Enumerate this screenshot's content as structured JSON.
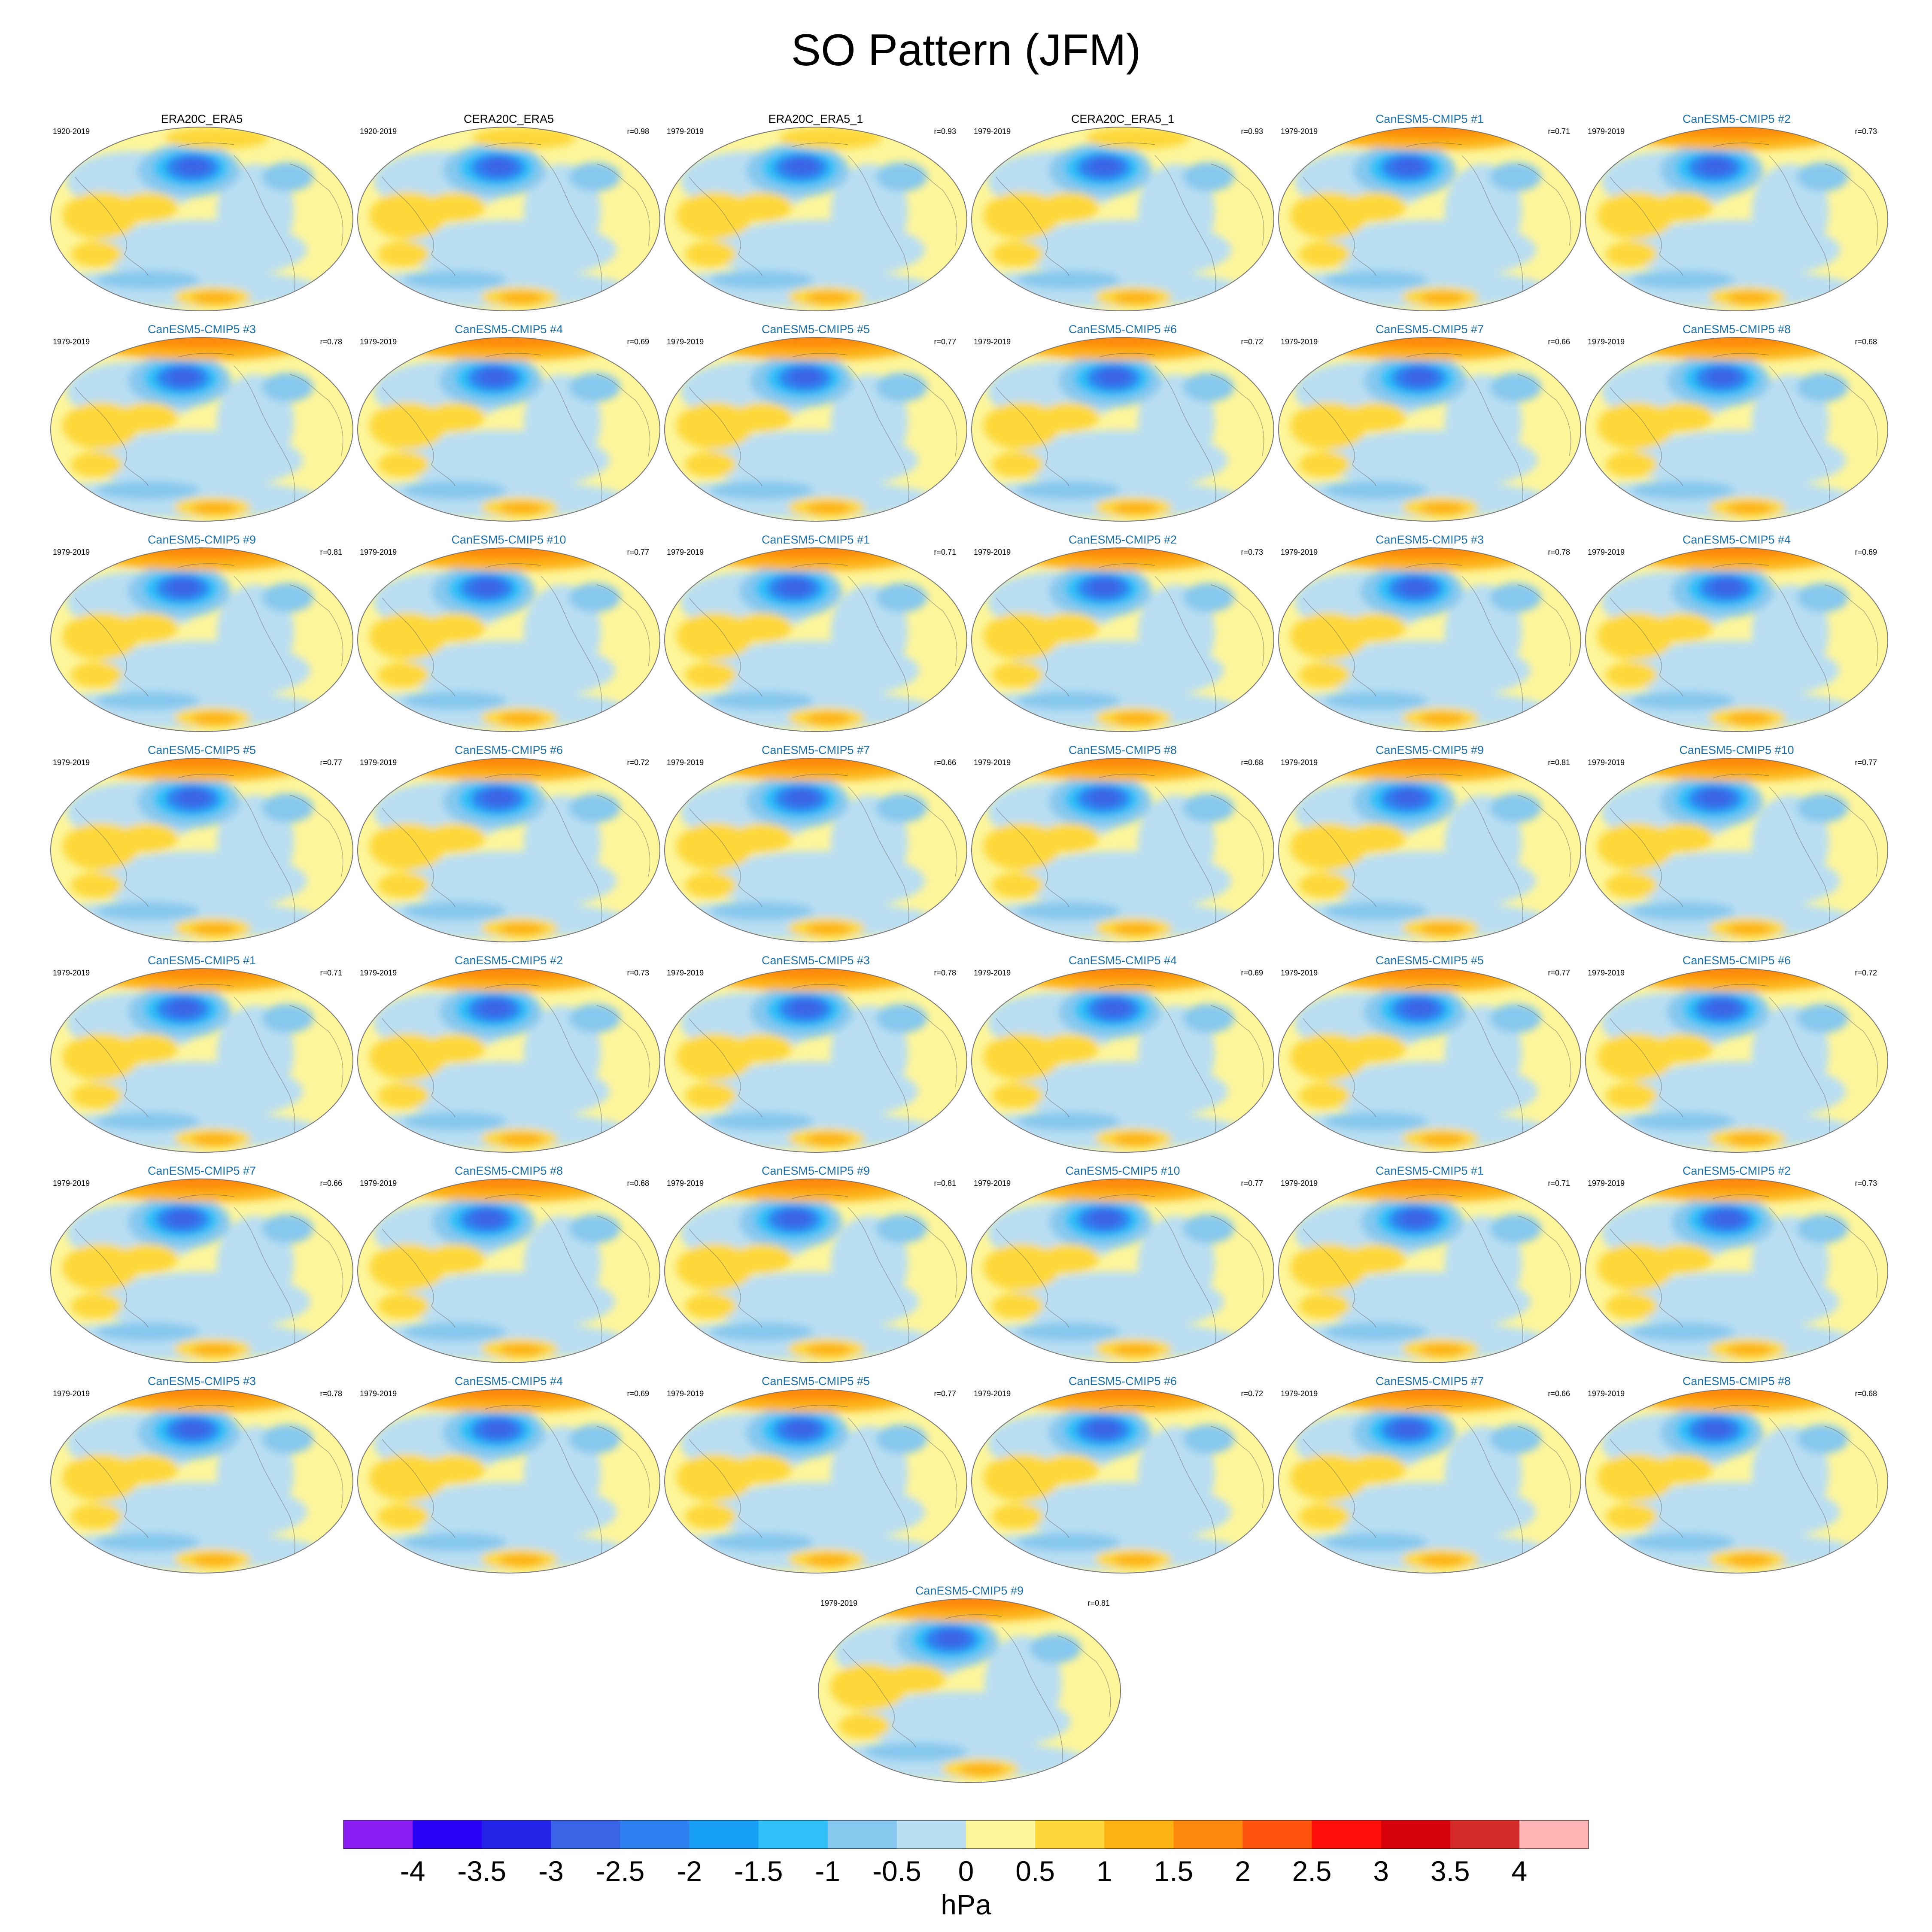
{
  "title": "SO Pattern (JFM)",
  "colorbar": {
    "unit": "hPa",
    "labels": [
      "-4",
      "-3.5",
      "-3",
      "-2.5",
      "-2",
      "-1.5",
      "-1",
      "-0.5",
      "0",
      "0.5",
      "1",
      "1.5",
      "2",
      "2.5",
      "3",
      "3.5",
      "4"
    ],
    "colors": [
      "#8a1ef2",
      "#2a00f5",
      "#2323e8",
      "#3a64e6",
      "#2e7ff0",
      "#169ff4",
      "#2ec0f7",
      "#86c8ee",
      "#b9def2",
      "#fdf59a",
      "#fdd83a",
      "#fdb214",
      "#fd8a0c",
      "#fd520c",
      "#fe0e0a",
      "#d6000a",
      "#d42a28",
      "#fdb4b4"
    ]
  },
  "panels": [
    {
      "title": "ERA20C_ERA5",
      "period": "1920-2019",
      "corr": "",
      "kind": "obs"
    },
    {
      "title": "CERA20C_ERA5",
      "period": "1920-2019",
      "corr": "r=0.98",
      "kind": "obs"
    },
    {
      "title": "ERA20C_ERA5_1",
      "period": "1979-2019",
      "corr": "r=0.93",
      "kind": "obs"
    },
    {
      "title": "CERA20C_ERA5_1",
      "period": "1979-2019",
      "corr": "r=0.93",
      "kind": "obs"
    },
    {
      "title": "CanESM5-CMIP5 #1",
      "period": "1979-2019",
      "corr": "r=0.71",
      "kind": "model"
    },
    {
      "title": "CanESM5-CMIP5 #2",
      "period": "1979-2019",
      "corr": "r=0.73",
      "kind": "model"
    },
    {
      "title": "CanESM5-CMIP5 #3",
      "period": "1979-2019",
      "corr": "r=0.78",
      "kind": "model"
    },
    {
      "title": "CanESM5-CMIP5 #4",
      "period": "1979-2019",
      "corr": "r=0.69",
      "kind": "model"
    },
    {
      "title": "CanESM5-CMIP5 #5",
      "period": "1979-2019",
      "corr": "r=0.77",
      "kind": "model"
    },
    {
      "title": "CanESM5-CMIP5 #6",
      "period": "1979-2019",
      "corr": "r=0.72",
      "kind": "model"
    },
    {
      "title": "CanESM5-CMIP5 #7",
      "period": "1979-2019",
      "corr": "r=0.66",
      "kind": "model"
    },
    {
      "title": "CanESM5-CMIP5 #8",
      "period": "1979-2019",
      "corr": "r=0.68",
      "kind": "model"
    },
    {
      "title": "CanESM5-CMIP5 #9",
      "period": "1979-2019",
      "corr": "r=0.81",
      "kind": "model"
    },
    {
      "title": "CanESM5-CMIP5 #10",
      "period": "1979-2019",
      "corr": "r=0.77",
      "kind": "model"
    },
    {
      "title": "CanESM5-CMIP5 #1",
      "period": "1979-2019",
      "corr": "r=0.71",
      "kind": "model"
    },
    {
      "title": "CanESM5-CMIP5 #2",
      "period": "1979-2019",
      "corr": "r=0.73",
      "kind": "model"
    },
    {
      "title": "CanESM5-CMIP5 #3",
      "period": "1979-2019",
      "corr": "r=0.78",
      "kind": "model"
    },
    {
      "title": "CanESM5-CMIP5 #4",
      "period": "1979-2019",
      "corr": "r=0.69",
      "kind": "model"
    },
    {
      "title": "CanESM5-CMIP5 #5",
      "period": "1979-2019",
      "corr": "r=0.77",
      "kind": "model"
    },
    {
      "title": "CanESM5-CMIP5 #6",
      "period": "1979-2019",
      "corr": "r=0.72",
      "kind": "model"
    },
    {
      "title": "CanESM5-CMIP5 #7",
      "period": "1979-2019",
      "corr": "r=0.66",
      "kind": "model"
    },
    {
      "title": "CanESM5-CMIP5 #8",
      "period": "1979-2019",
      "corr": "r=0.68",
      "kind": "model"
    },
    {
      "title": "CanESM5-CMIP5 #9",
      "period": "1979-2019",
      "corr": "r=0.81",
      "kind": "model"
    },
    {
      "title": "CanESM5-CMIP5 #10",
      "period": "1979-2019",
      "corr": "r=0.77",
      "kind": "model"
    },
    {
      "title": "CanESM5-CMIP5 #1",
      "period": "1979-2019",
      "corr": "r=0.71",
      "kind": "model"
    },
    {
      "title": "CanESM5-CMIP5 #2",
      "period": "1979-2019",
      "corr": "r=0.73",
      "kind": "model"
    },
    {
      "title": "CanESM5-CMIP5 #3",
      "period": "1979-2019",
      "corr": "r=0.78",
      "kind": "model"
    },
    {
      "title": "CanESM5-CMIP5 #4",
      "period": "1979-2019",
      "corr": "r=0.69",
      "kind": "model"
    },
    {
      "title": "CanESM5-CMIP5 #5",
      "period": "1979-2019",
      "corr": "r=0.77",
      "kind": "model"
    },
    {
      "title": "CanESM5-CMIP5 #6",
      "period": "1979-2019",
      "corr": "r=0.72",
      "kind": "model"
    },
    {
      "title": "CanESM5-CMIP5 #7",
      "period": "1979-2019",
      "corr": "r=0.66",
      "kind": "model"
    },
    {
      "title": "CanESM5-CMIP5 #8",
      "period": "1979-2019",
      "corr": "r=0.68",
      "kind": "model"
    },
    {
      "title": "CanESM5-CMIP5 #9",
      "period": "1979-2019",
      "corr": "r=0.81",
      "kind": "model"
    },
    {
      "title": "CanESM5-CMIP5 #10",
      "period": "1979-2019",
      "corr": "r=0.77",
      "kind": "model"
    },
    {
      "title": "CanESM5-CMIP5 #1",
      "period": "1979-2019",
      "corr": "r=0.71",
      "kind": "model"
    },
    {
      "title": "CanESM5-CMIP5 #2",
      "period": "1979-2019",
      "corr": "r=0.73",
      "kind": "model"
    },
    {
      "title": "CanESM5-CMIP5 #3",
      "period": "1979-2019",
      "corr": "r=0.78",
      "kind": "model"
    },
    {
      "title": "CanESM5-CMIP5 #4",
      "period": "1979-2019",
      "corr": "r=0.69",
      "kind": "model"
    },
    {
      "title": "CanESM5-CMIP5 #5",
      "period": "1979-2019",
      "corr": "r=0.77",
      "kind": "model"
    },
    {
      "title": "CanESM5-CMIP5 #6",
      "period": "1979-2019",
      "corr": "r=0.72",
      "kind": "model"
    },
    {
      "title": "CanESM5-CMIP5 #7",
      "period": "1979-2019",
      "corr": "r=0.66",
      "kind": "model"
    },
    {
      "title": "CanESM5-CMIP5 #8",
      "period": "1979-2019",
      "corr": "r=0.68",
      "kind": "model"
    },
    {
      "title": "CanESM5-CMIP5 #9",
      "period": "1979-2019",
      "corr": "r=0.81",
      "kind": "model"
    }
  ]
}
